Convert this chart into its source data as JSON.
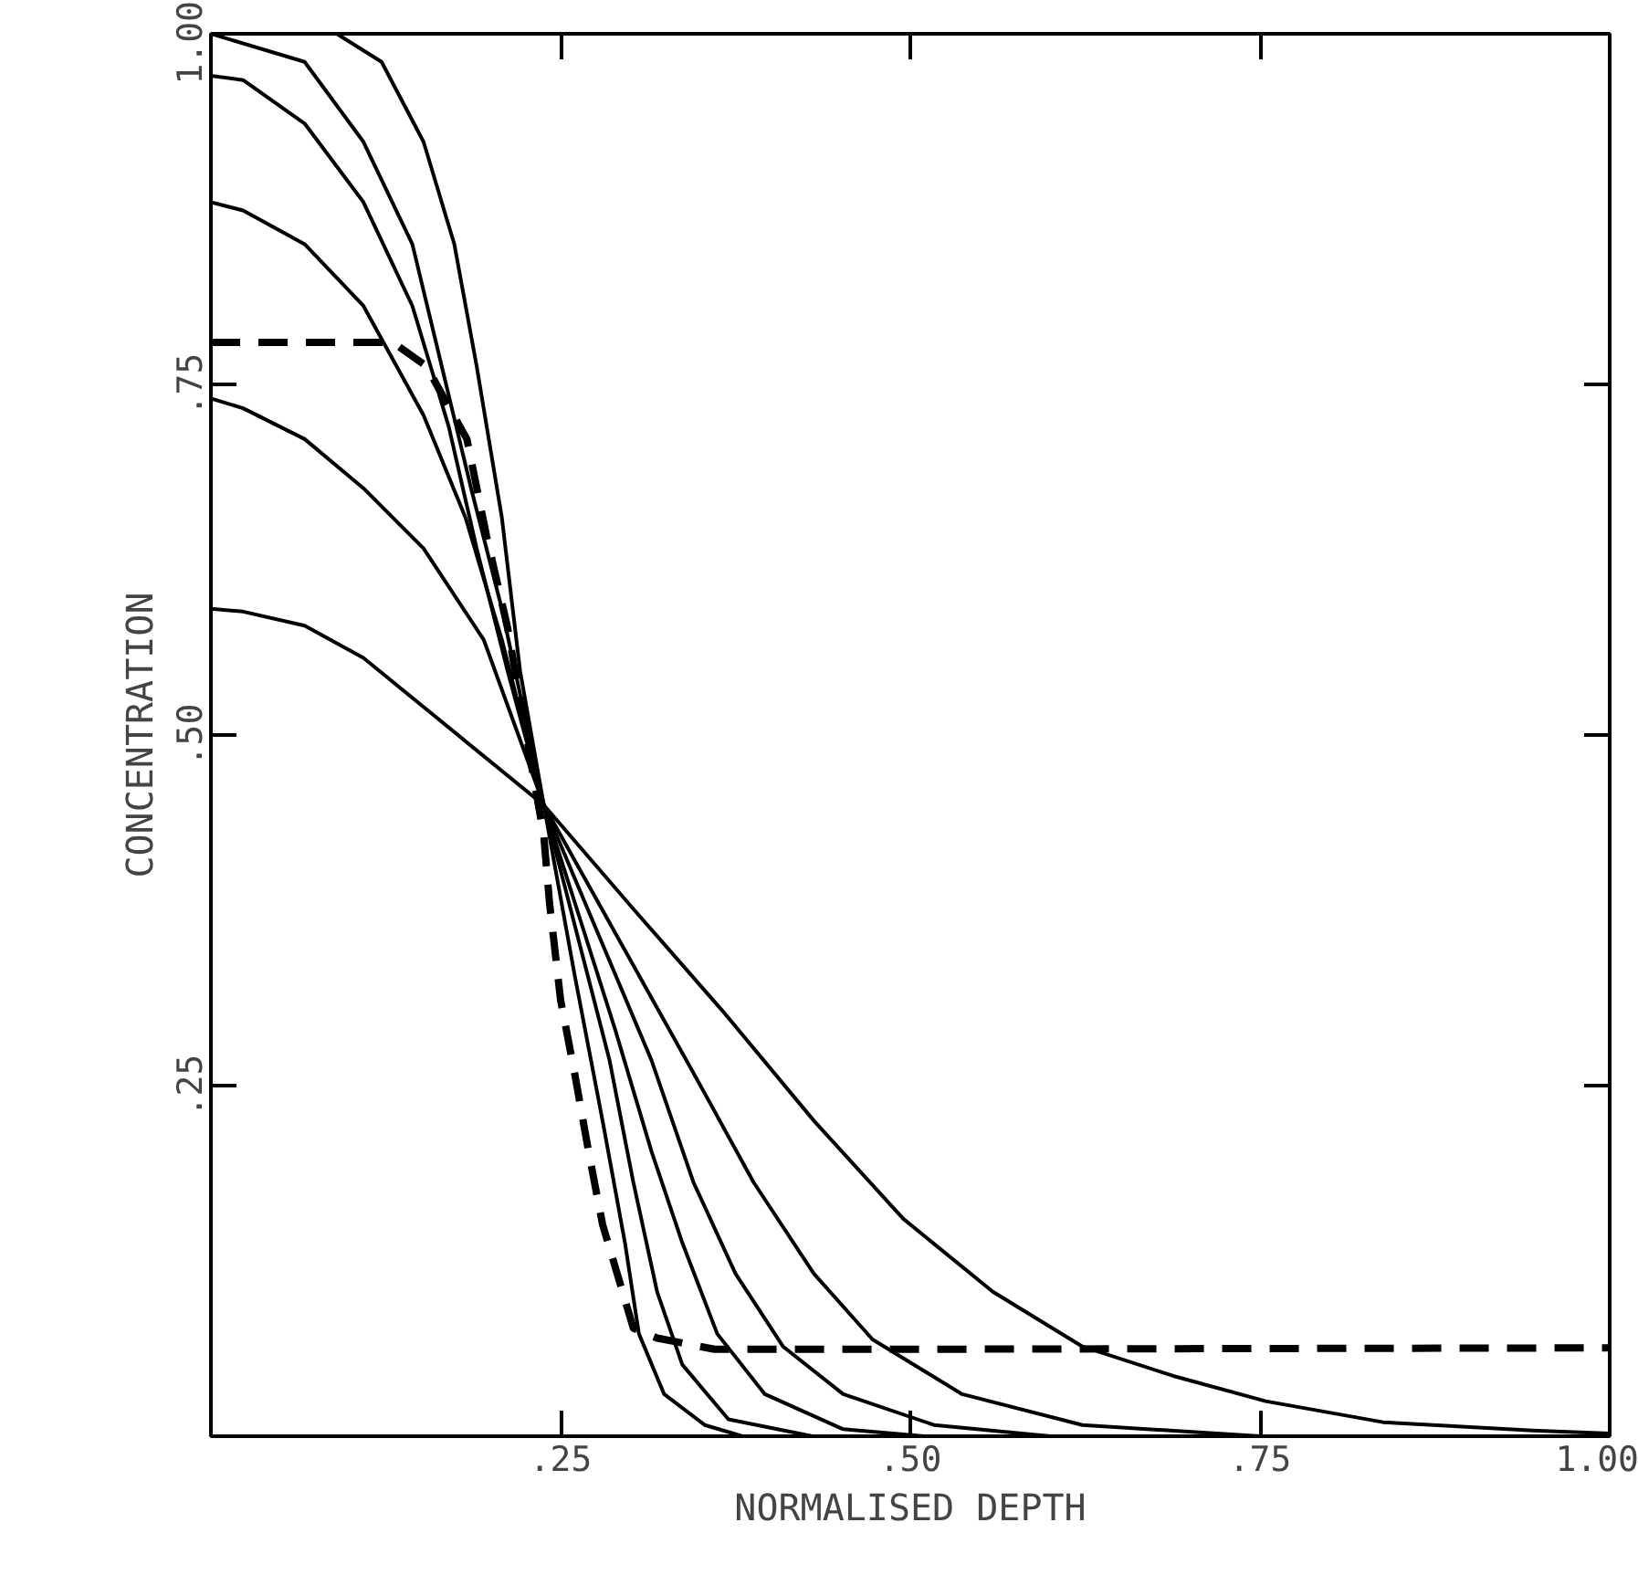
{
  "chart_data": {
    "type": "line",
    "xlabel": "NORMALISED DEPTH",
    "ylabel": "CONCENTRATION",
    "xlim": [
      0,
      1
    ],
    "ylim": [
      0,
      1
    ],
    "xticks": [
      {
        "value": 0.25,
        "label": ".25"
      },
      {
        "value": 0.5,
        "label": ".50"
      },
      {
        "value": 0.75,
        "label": ".75"
      },
      {
        "value": 1.0,
        "label": "1.00"
      }
    ],
    "yticks": [
      {
        "value": 0.25,
        "label": ".25"
      },
      {
        "value": 0.5,
        "label": ".50"
      },
      {
        "value": 0.75,
        "label": ".75"
      },
      {
        "value": 1.0,
        "label": "1.00"
      }
    ],
    "grid": false,
    "marker": "none",
    "series": [
      {
        "color": "#000000",
        "line_style": "solid",
        "x": [
          0,
          0.09,
          0.122,
          0.152,
          0.174,
          0.19,
          0.208,
          0.221,
          0.238,
          0.26,
          0.28,
          0.296,
          0.306,
          0.324,
          0.353,
          0.38
        ],
        "values": [
          1.0,
          1.0,
          0.98,
          0.923,
          0.85,
          0.763,
          0.655,
          0.546,
          0.45,
          0.329,
          0.225,
          0.138,
          0.073,
          0.03,
          0.008,
          0.0
        ]
      },
      {
        "color": "#000000",
        "line_style": "solid",
        "x": [
          0,
          0.067,
          0.109,
          0.144,
          0.165,
          0.186,
          0.208,
          0.238,
          0.285,
          0.302,
          0.319,
          0.337,
          0.37,
          0.43
        ],
        "values": [
          1.0,
          0.98,
          0.923,
          0.85,
          0.763,
          0.676,
          0.59,
          0.45,
          0.268,
          0.181,
          0.103,
          0.051,
          0.012,
          0.0
        ]
      },
      {
        "color": "#000000",
        "line_style": "solid",
        "x": [
          0,
          0.023,
          0.067,
          0.109,
          0.144,
          0.17,
          0.19,
          0.212,
          0.238,
          0.289,
          0.315,
          0.337,
          0.362,
          0.396,
          0.452,
          0.51
        ],
        "values": [
          0.97,
          0.967,
          0.936,
          0.88,
          0.806,
          0.72,
          0.633,
          0.546,
          0.45,
          0.29,
          0.203,
          0.138,
          0.073,
          0.03,
          0.005,
          0.0
        ]
      },
      {
        "color": "#000000",
        "line_style": "solid",
        "x": [
          0,
          0.023,
          0.067,
          0.109,
          0.152,
          0.182,
          0.208,
          0.238,
          0.315,
          0.345,
          0.375,
          0.409,
          0.452,
          0.517,
          0.6
        ],
        "values": [
          0.88,
          0.874,
          0.85,
          0.806,
          0.728,
          0.655,
          0.568,
          0.45,
          0.268,
          0.181,
          0.116,
          0.064,
          0.03,
          0.008,
          0.0
        ]
      },
      {
        "color": "#000000",
        "line_style": "solid",
        "x": [
          0,
          0.023,
          0.067,
          0.109,
          0.152,
          0.195,
          0.238,
          0.345,
          0.388,
          0.431,
          0.473,
          0.537,
          0.623,
          0.75
        ],
        "values": [
          0.74,
          0.733,
          0.711,
          0.676,
          0.633,
          0.568,
          0.45,
          0.259,
          0.181,
          0.116,
          0.069,
          0.03,
          0.008,
          0.0
        ]
      },
      {
        "color": "#000000",
        "line_style": "solid",
        "x": [
          0,
          0.023,
          0.067,
          0.109,
          0.152,
          0.238,
          0.302,
          0.366,
          0.431,
          0.495,
          0.559,
          0.623,
          0.688,
          0.754,
          0.838,
          0.945,
          1.0
        ],
        "values": [
          0.59,
          0.588,
          0.578,
          0.555,
          0.52,
          0.45,
          0.376,
          0.303,
          0.225,
          0.155,
          0.103,
          0.064,
          0.043,
          0.025,
          0.01,
          0.004,
          0.002
        ]
      },
      {
        "color": "#000000",
        "line_style": "dashed",
        "x": [
          0,
          0.13,
          0.154,
          0.183,
          0.197,
          0.212,
          0.238,
          0.242,
          0.25,
          0.26,
          0.27,
          0.28,
          0.302,
          0.319,
          0.36,
          0.5,
          1.0
        ],
        "values": [
          0.78,
          0.78,
          0.763,
          0.711,
          0.642,
          0.577,
          0.428,
          0.381,
          0.311,
          0.259,
          0.203,
          0.151,
          0.077,
          0.07,
          0.062,
          0.062,
          0.063
        ]
      }
    ]
  }
}
